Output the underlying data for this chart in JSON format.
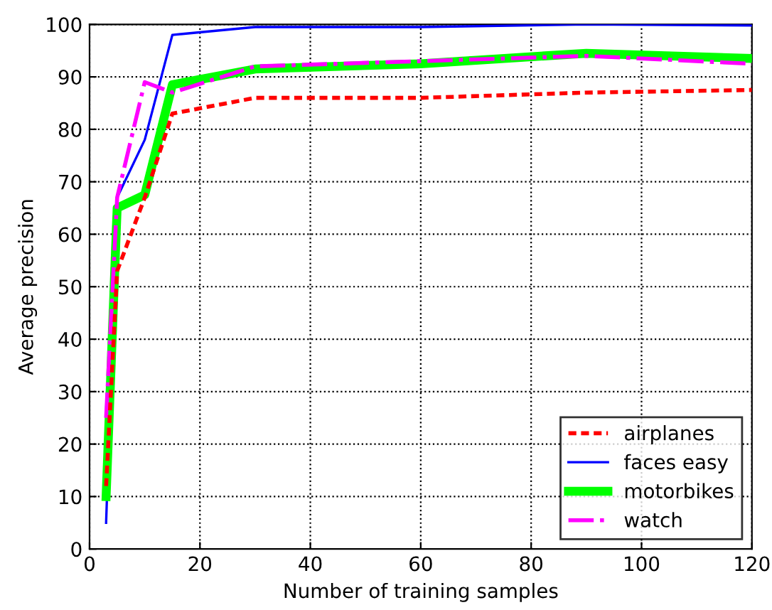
{
  "chart_data": {
    "type": "line",
    "xlabel": "Number of training samples",
    "ylabel": "Average precision",
    "xlim": [
      0,
      120
    ],
    "ylim": [
      0,
      100
    ],
    "xticks": [
      0,
      20,
      40,
      60,
      80,
      100,
      120
    ],
    "yticks": [
      0,
      10,
      20,
      30,
      40,
      50,
      60,
      70,
      80,
      90,
      100
    ],
    "grid": true,
    "legend": "bottom right",
    "series": [
      {
        "name": "airplanes",
        "color": "#ff0000",
        "line_style": "dashed",
        "x": [
          3,
          5,
          10,
          15,
          30,
          60,
          90,
          120
        ],
        "values": [
          12,
          53,
          67,
          83,
          86,
          86,
          87,
          87.5
        ]
      },
      {
        "name": "faces easy",
        "color": "#0000ff",
        "line_style": "solid",
        "x": [
          3,
          5,
          10,
          15,
          30,
          60,
          90,
          120
        ],
        "values": [
          5,
          67,
          78,
          98,
          99.5,
          99.5,
          100,
          99.8
        ]
      },
      {
        "name": "motorbikes",
        "color": "#00ff00",
        "line_style": "solid",
        "x": [
          3,
          5,
          10,
          15,
          30,
          60,
          90,
          120
        ],
        "values": [
          10,
          65,
          67.5,
          88.5,
          91.5,
          92.5,
          94.5,
          93.5
        ]
      },
      {
        "name": "watch",
        "color": "#ff00ff",
        "line_style": "dashdot",
        "x": [
          3,
          5,
          10,
          15,
          30,
          60,
          90,
          120
        ],
        "values": [
          25,
          67,
          89,
          87,
          92,
          93,
          94,
          92.5
        ]
      }
    ]
  }
}
